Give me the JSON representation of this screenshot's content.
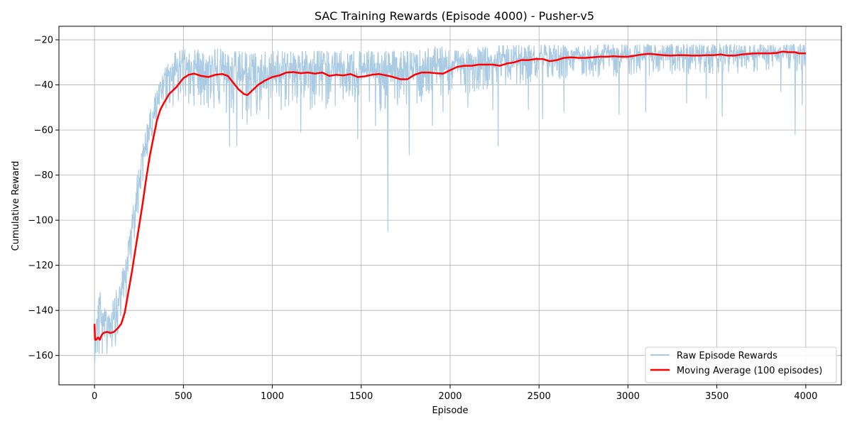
{
  "chart_data": {
    "type": "line",
    "title": "SAC Training Rewards (Episode 4000) - Pusher-v5",
    "xlabel": "Episode",
    "ylabel": "Cumulative Reward",
    "xlim": [
      -200,
      4200
    ],
    "ylim": [
      -173,
      -14
    ],
    "xticks": [
      0,
      500,
      1000,
      1500,
      2000,
      2500,
      3000,
      3500,
      4000
    ],
    "yticks": [
      -160,
      -140,
      -120,
      -100,
      -80,
      -60,
      -40,
      -20
    ],
    "grid": true,
    "legend_position": "lower-right",
    "series": [
      {
        "name": "Raw Episode Rewards",
        "color": "#aacbe3",
        "style": "noisy-band",
        "band_upper": [
          [
            0,
            -148
          ],
          [
            10,
            -138
          ],
          [
            30,
            -128
          ],
          [
            60,
            -140
          ],
          [
            100,
            -135
          ],
          [
            140,
            -128
          ],
          [
            180,
            -115
          ],
          [
            220,
            -90
          ],
          [
            260,
            -72
          ],
          [
            300,
            -55
          ],
          [
            350,
            -42
          ],
          [
            400,
            -32
          ],
          [
            450,
            -26
          ],
          [
            500,
            -24
          ],
          [
            600,
            -24
          ],
          [
            700,
            -24
          ],
          [
            800,
            -25
          ],
          [
            900,
            -26
          ],
          [
            1000,
            -25
          ],
          [
            1200,
            -25
          ],
          [
            1400,
            -25
          ],
          [
            1600,
            -25
          ],
          [
            1800,
            -25
          ],
          [
            1950,
            -22
          ],
          [
            2000,
            -25
          ],
          [
            2200,
            -23
          ],
          [
            2400,
            -22
          ],
          [
            2600,
            -22
          ],
          [
            2800,
            -22
          ],
          [
            3000,
            -22
          ],
          [
            3200,
            -22
          ],
          [
            3400,
            -22
          ],
          [
            3600,
            -22
          ],
          [
            3800,
            -22
          ],
          [
            4000,
            -22
          ]
        ],
        "band_lower": [
          [
            0,
            -163
          ],
          [
            30,
            -165
          ],
          [
            60,
            -165
          ],
          [
            100,
            -160
          ],
          [
            140,
            -150
          ],
          [
            180,
            -135
          ],
          [
            220,
            -110
          ],
          [
            260,
            -90
          ],
          [
            300,
            -72
          ],
          [
            350,
            -60
          ],
          [
            400,
            -52
          ],
          [
            450,
            -50
          ],
          [
            500,
            -48
          ],
          [
            600,
            -50
          ],
          [
            700,
            -52
          ],
          [
            800,
            -58
          ],
          [
            850,
            -60
          ],
          [
            900,
            -55
          ],
          [
            1000,
            -50
          ],
          [
            1200,
            -52
          ],
          [
            1400,
            -50
          ],
          [
            1600,
            -52
          ],
          [
            1800,
            -50
          ],
          [
            2000,
            -45
          ],
          [
            2200,
            -42
          ],
          [
            2400,
            -40
          ],
          [
            2600,
            -38
          ],
          [
            2800,
            -37
          ],
          [
            3000,
            -36
          ],
          [
            3200,
            -36
          ],
          [
            3400,
            -35
          ],
          [
            3600,
            -35
          ],
          [
            3800,
            -34
          ],
          [
            4000,
            -34
          ]
        ],
        "spikes": [
          [
            240,
            -80
          ],
          [
            340,
            -55
          ],
          [
            530,
            -48
          ],
          [
            640,
            -50
          ],
          [
            760,
            -67
          ],
          [
            800,
            -67
          ],
          [
            980,
            -55
          ],
          [
            1050,
            -51
          ],
          [
            1160,
            -61
          ],
          [
            1480,
            -64
          ],
          [
            1580,
            -58
          ],
          [
            1650,
            -105
          ],
          [
            1770,
            -71
          ],
          [
            1900,
            -58
          ],
          [
            1960,
            -52
          ],
          [
            2100,
            -50
          ],
          [
            2240,
            -51
          ],
          [
            2270,
            -67
          ],
          [
            2440,
            -51
          ],
          [
            2520,
            -55
          ],
          [
            2640,
            -52
          ],
          [
            2950,
            -53
          ],
          [
            3100,
            -52
          ],
          [
            3330,
            -48
          ],
          [
            3440,
            -46
          ],
          [
            3530,
            -54
          ],
          [
            3860,
            -43
          ],
          [
            3940,
            -62
          ],
          [
            3980,
            -49
          ]
        ]
      },
      {
        "name": "Moving Average (100 episodes)",
        "color": "#ff0000",
        "style": "line",
        "points": [
          [
            0,
            -146
          ],
          [
            3,
            -153
          ],
          [
            10,
            -153
          ],
          [
            20,
            -152
          ],
          [
            30,
            -153
          ],
          [
            40,
            -151
          ],
          [
            50,
            -150
          ],
          [
            70,
            -149.5
          ],
          [
            90,
            -150
          ],
          [
            110,
            -149.5
          ],
          [
            130,
            -148
          ],
          [
            150,
            -146
          ],
          [
            170,
            -141
          ],
          [
            190,
            -132
          ],
          [
            210,
            -123
          ],
          [
            230,
            -113
          ],
          [
            250,
            -103
          ],
          [
            270,
            -93
          ],
          [
            290,
            -82
          ],
          [
            310,
            -72
          ],
          [
            330,
            -64
          ],
          [
            350,
            -56
          ],
          [
            370,
            -51
          ],
          [
            390,
            -48
          ],
          [
            420,
            -44
          ],
          [
            460,
            -41
          ],
          [
            500,
            -37
          ],
          [
            530,
            -35.5
          ],
          [
            560,
            -35
          ],
          [
            600,
            -36
          ],
          [
            640,
            -36.5
          ],
          [
            680,
            -35.5
          ],
          [
            720,
            -35.2
          ],
          [
            750,
            -36
          ],
          [
            780,
            -39
          ],
          [
            810,
            -42
          ],
          [
            840,
            -44
          ],
          [
            860,
            -44.5
          ],
          [
            880,
            -43
          ],
          [
            920,
            -40
          ],
          [
            960,
            -38
          ],
          [
            1000,
            -36.5
          ],
          [
            1040,
            -35.8
          ],
          [
            1080,
            -34.5
          ],
          [
            1120,
            -34.3
          ],
          [
            1160,
            -34.8
          ],
          [
            1200,
            -34.5
          ],
          [
            1240,
            -35
          ],
          [
            1280,
            -34.5
          ],
          [
            1320,
            -36
          ],
          [
            1360,
            -35.5
          ],
          [
            1400,
            -35.8
          ],
          [
            1440,
            -35.2
          ],
          [
            1480,
            -36.5
          ],
          [
            1520,
            -36.2
          ],
          [
            1560,
            -35.5
          ],
          [
            1600,
            -35.2
          ],
          [
            1640,
            -35.8
          ],
          [
            1680,
            -36.5
          ],
          [
            1720,
            -37.5
          ],
          [
            1760,
            -37.5
          ],
          [
            1800,
            -35.5
          ],
          [
            1840,
            -34.5
          ],
          [
            1880,
            -34.5
          ],
          [
            1920,
            -34.8
          ],
          [
            1960,
            -35
          ],
          [
            2000,
            -33.5
          ],
          [
            2040,
            -32
          ],
          [
            2080,
            -31.5
          ],
          [
            2120,
            -31.5
          ],
          [
            2160,
            -31
          ],
          [
            2200,
            -31
          ],
          [
            2240,
            -31
          ],
          [
            2280,
            -31.5
          ],
          [
            2320,
            -30.5
          ],
          [
            2360,
            -30
          ],
          [
            2400,
            -29
          ],
          [
            2440,
            -29
          ],
          [
            2480,
            -28.5
          ],
          [
            2520,
            -28.5
          ],
          [
            2560,
            -29.5
          ],
          [
            2600,
            -29
          ],
          [
            2640,
            -28
          ],
          [
            2680,
            -27.8
          ],
          [
            2720,
            -28
          ],
          [
            2760,
            -28
          ],
          [
            2800,
            -27.8
          ],
          [
            2840,
            -27.5
          ],
          [
            2880,
            -27.5
          ],
          [
            2920,
            -27.3
          ],
          [
            2960,
            -27.5
          ],
          [
            3000,
            -27.5
          ],
          [
            3040,
            -27
          ],
          [
            3080,
            -26.5
          ],
          [
            3120,
            -26.2
          ],
          [
            3160,
            -26.5
          ],
          [
            3200,
            -26.8
          ],
          [
            3240,
            -27
          ],
          [
            3280,
            -26.8
          ],
          [
            3320,
            -26.8
          ],
          [
            3360,
            -27
          ],
          [
            3400,
            -27
          ],
          [
            3440,
            -26.8
          ],
          [
            3480,
            -26.8
          ],
          [
            3520,
            -26.5
          ],
          [
            3560,
            -27
          ],
          [
            3600,
            -27
          ],
          [
            3640,
            -26.5
          ],
          [
            3680,
            -26.2
          ],
          [
            3720,
            -26
          ],
          [
            3760,
            -26
          ],
          [
            3800,
            -26
          ],
          [
            3840,
            -25.8
          ],
          [
            3870,
            -25.2
          ],
          [
            3900,
            -25.5
          ],
          [
            3940,
            -25.5
          ],
          [
            3960,
            -26
          ],
          [
            4000,
            -26
          ]
        ]
      }
    ]
  }
}
